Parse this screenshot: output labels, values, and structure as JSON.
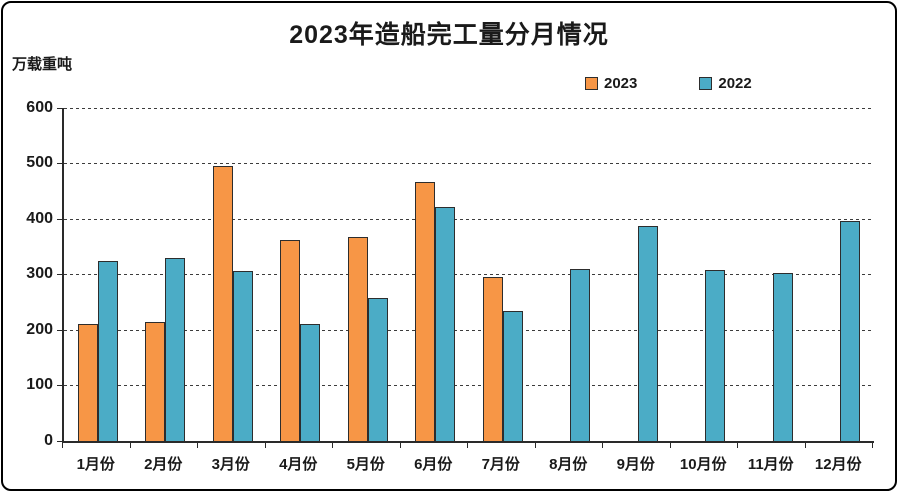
{
  "window": {
    "background": "#ffffff",
    "border_color": "#000000"
  },
  "header": {
    "title": "2023年造船完工量分月情况",
    "unit_label": "万载重吨"
  },
  "legend": {
    "items": [
      {
        "label": "2023",
        "color": "#F79646"
      },
      {
        "label": "2022",
        "color": "#4BACC6"
      }
    ]
  },
  "colors": {
    "bar_2023": "#F79646",
    "bar_2022": "#4BACC6",
    "bar_border": "#2d2d2d",
    "axis": "#2a2a2a",
    "text": "#1a1a1a"
  },
  "chart_data": {
    "type": "bar",
    "title": "2023年造船完工量分月情况",
    "xlabel": "",
    "ylabel": "万载重吨",
    "categories": [
      "1月份",
      "2月份",
      "3月份",
      "4月份",
      "5月份",
      "6月份",
      "7月份",
      "8月份",
      "9月份",
      "10月份",
      "11月份",
      "12月份"
    ],
    "series": [
      {
        "name": "2023",
        "color": "#F79646",
        "values": [
          211,
          214,
          495,
          363,
          368,
          467,
          296,
          null,
          null,
          null,
          null,
          null
        ]
      },
      {
        "name": "2022",
        "color": "#4BACC6",
        "values": [
          325,
          330,
          307,
          211,
          258,
          422,
          235,
          310,
          387,
          308,
          302,
          396
        ]
      }
    ],
    "ylim": [
      0,
      600
    ],
    "ytick_interval": 100,
    "yticks": [
      0,
      100,
      200,
      300,
      400,
      500,
      600
    ],
    "grid": "horizontal-dashed",
    "legend_position": "top-right"
  }
}
